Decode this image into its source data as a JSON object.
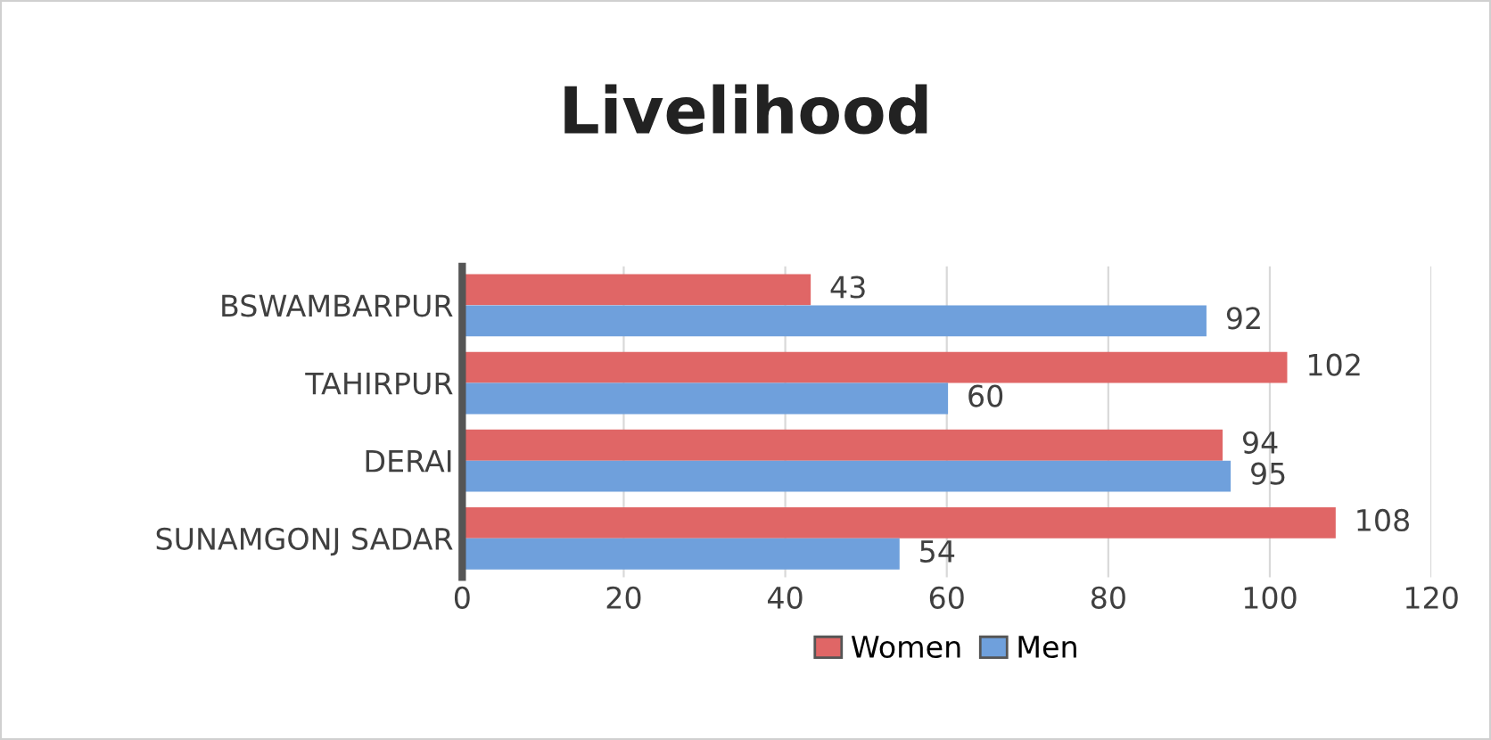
{
  "chart_data": {
    "type": "bar",
    "orientation": "horizontal",
    "title": "Livelihood",
    "categories": [
      "BSWAMBARPUR",
      "TAHIRPUR",
      "DERAI",
      "SUNAMGONJ SADAR"
    ],
    "series": [
      {
        "name": "Women",
        "color": "#e06666",
        "values": [
          43,
          102,
          94,
          108
        ]
      },
      {
        "name": "Men",
        "color": "#6fa0dc",
        "values": [
          92,
          60,
          95,
          54
        ]
      }
    ],
    "xlim": [
      0,
      120
    ],
    "xticks": [
      0,
      20,
      40,
      60,
      80,
      100,
      120
    ],
    "grid": "x",
    "legend": "bottom",
    "data_labels": true
  }
}
